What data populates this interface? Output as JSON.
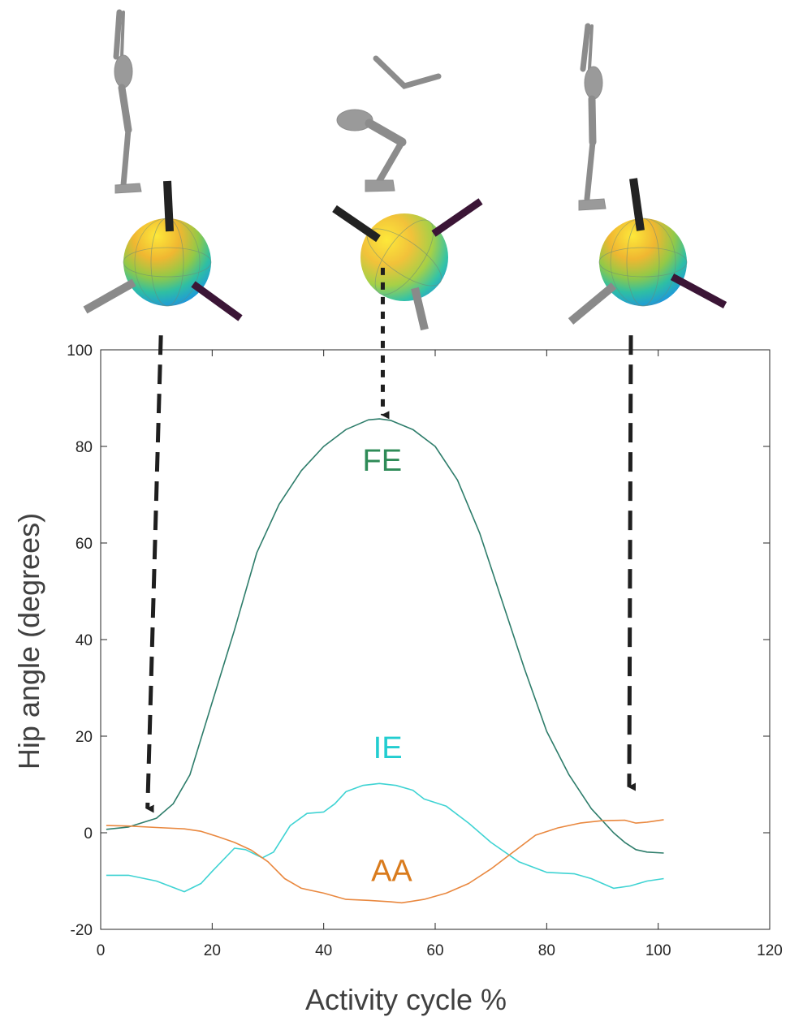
{
  "chart_data": {
    "type": "line",
    "xlabel": "Activity cycle %",
    "ylabel": "Hip angle (degrees)",
    "xlim": [
      0,
      120
    ],
    "ylim": [
      -20,
      100
    ],
    "xticks": [
      0,
      20,
      40,
      60,
      80,
      100,
      120
    ],
    "yticks": [
      -20,
      0,
      20,
      40,
      60,
      80,
      100
    ],
    "grid": false,
    "series": [
      {
        "name": "FE",
        "color": "#2e7d6b",
        "label_color": "#2e8b57",
        "x": [
          1,
          5,
          10,
          13,
          16,
          20,
          24,
          28,
          32,
          36,
          40,
          44,
          48,
          50,
          52,
          56,
          60,
          64,
          68,
          72,
          76,
          80,
          84,
          88,
          92,
          94,
          96,
          98,
          101
        ],
        "y": [
          0.7,
          1.2,
          3,
          6,
          12,
          27,
          42,
          58,
          68,
          75,
          80,
          83.5,
          85.5,
          85.7,
          85.4,
          83.5,
          80,
          73,
          62,
          48,
          34,
          21,
          12,
          5,
          0,
          -2,
          -3.5,
          -4,
          -4.2
        ]
      },
      {
        "name": "IE",
        "color": "#3fd3d3",
        "label_color": "#22cdd0",
        "x": [
          1,
          5,
          10,
          15,
          18,
          20,
          24,
          26,
          29,
          31,
          34,
          37,
          40,
          42,
          44,
          47,
          50,
          53,
          56,
          58,
          62,
          66,
          70,
          75,
          80,
          85,
          88,
          90,
          92,
          95,
          98,
          101
        ],
        "y": [
          -8.8,
          -8.8,
          -10,
          -12.2,
          -10.5,
          -8,
          -3.2,
          -3.5,
          -5.2,
          -4,
          1.5,
          4,
          4.3,
          6,
          8.5,
          9.8,
          10.2,
          9.8,
          8.8,
          7,
          5.5,
          2,
          -2,
          -6,
          -8.2,
          -8.5,
          -9.5,
          -10.5,
          -11.5,
          -11,
          -10,
          -9.5
        ]
      },
      {
        "name": "AA",
        "color": "#e9883f",
        "label_color": "#d97b1d",
        "x": [
          1,
          5,
          10,
          15,
          18,
          21,
          24,
          27,
          30,
          33,
          36,
          40,
          44,
          48,
          52,
          54,
          58,
          62,
          66,
          70,
          74,
          78,
          82,
          86,
          90,
          94,
          96,
          98,
          101
        ],
        "y": [
          1.5,
          1.4,
          1.1,
          0.8,
          0.3,
          -0.8,
          -2,
          -3.6,
          -6,
          -9.5,
          -11.5,
          -12.5,
          -13.8,
          -14,
          -14.3,
          -14.5,
          -13.8,
          -12.5,
          -10.5,
          -7.5,
          -4,
          -0.5,
          1,
          2,
          2.5,
          2.6,
          2,
          2.2,
          2.7
        ]
      }
    ],
    "annotations": [
      {
        "type": "arrow",
        "style": "dashed",
        "from_x": 10.8,
        "from_y": 103,
        "to_x": 8.4,
        "to_y": 5
      },
      {
        "type": "arrow",
        "style": "dotted",
        "from_x": 50.6,
        "from_y": 117,
        "to_x": 50.6,
        "to_y": 86.5
      },
      {
        "type": "arrow",
        "style": "dashed",
        "from_x": 95.1,
        "from_y": 103,
        "to_x": 94.8,
        "to_y": 9.5
      }
    ]
  },
  "illustrations": {
    "joint_spheres": [
      {
        "name": "standing-start",
        "at_x": 12
      },
      {
        "name": "squat-mid",
        "at_x": 50
      },
      {
        "name": "standing-end",
        "at_x": 96
      }
    ]
  }
}
